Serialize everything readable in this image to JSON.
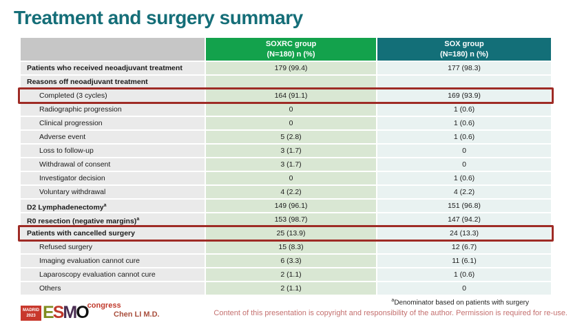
{
  "slide": {
    "title": "Treatment and surgery summary",
    "presenter": "Chen LI M.D.",
    "footnote": {
      "sup": "a",
      "text": "Denominator based on patients with surgery"
    },
    "copyright": "Content of this presentation is copyright and responsibility of the author.  Permission is required for re-use.",
    "logo": {
      "badge_line1": "MADRID",
      "badge_line2": "2023",
      "letters": [
        "E",
        "S",
        "M",
        "O"
      ],
      "congress": "congress"
    }
  },
  "colors": {
    "title_teal": "#156e78",
    "header_green": "#13a24c",
    "header_teal": "#136f78",
    "header_gray": "#c6c6c6",
    "label_cell": "#eaeaea",
    "soxrc_cell": "#d9e7d3",
    "sox_cell": "#e9f2f1",
    "highlight_red": "#9e2b25",
    "copyright_pink": "#c4706f",
    "presenter_red": "#a94f3d"
  },
  "table": {
    "header": {
      "col1": {
        "line1": "SOXRC group",
        "line2": "(N=180)  n (%)"
      },
      "col2": {
        "line1": "SOX group",
        "line2": "(N=180)  n (%)"
      }
    },
    "rows": [
      {
        "label": "Patients who received neoadjuvant treatment",
        "sup": "",
        "soxrc": "179 (99.4)",
        "sox": "177 (98.3)",
        "bold": true,
        "indent": false,
        "highlight": false
      },
      {
        "label": "Reasons off neoadjuvant treatment",
        "sup": "",
        "soxrc": "",
        "sox": "",
        "bold": true,
        "indent": false,
        "highlight": false
      },
      {
        "label": "Completed (3 cycles)",
        "sup": "",
        "soxrc": "164 (91.1)",
        "sox": "169 (93.9)",
        "bold": false,
        "indent": true,
        "highlight": true
      },
      {
        "label": "Radiographic progression",
        "sup": "",
        "soxrc": "0",
        "sox": "1 (0.6)",
        "bold": false,
        "indent": true,
        "highlight": false
      },
      {
        "label": "Clinical progression",
        "sup": "",
        "soxrc": "0",
        "sox": "1 (0.6)",
        "bold": false,
        "indent": true,
        "highlight": false
      },
      {
        "label": "Adverse event",
        "sup": "",
        "soxrc": "5 (2.8)",
        "sox": "1 (0.6)",
        "bold": false,
        "indent": true,
        "highlight": false
      },
      {
        "label": "Loss to follow-up",
        "sup": "",
        "soxrc": "3 (1.7)",
        "sox": "0",
        "bold": false,
        "indent": true,
        "highlight": false
      },
      {
        "label": "Withdrawal of consent",
        "sup": "",
        "soxrc": "3 (1.7)",
        "sox": "0",
        "bold": false,
        "indent": true,
        "highlight": false
      },
      {
        "label": "Investigator decision",
        "sup": "",
        "soxrc": "0",
        "sox": "1 (0.6)",
        "bold": false,
        "indent": true,
        "highlight": false
      },
      {
        "label": "Voluntary withdrawal",
        "sup": "",
        "soxrc": "4 (2.2)",
        "sox": "4 (2.2)",
        "bold": false,
        "indent": true,
        "highlight": false
      },
      {
        "label": "D2 Lymphadenectomy",
        "sup": "a",
        "soxrc": "149 (96.1)",
        "sox": "151 (96.8)",
        "bold": true,
        "indent": false,
        "highlight": false
      },
      {
        "label": "R0 resection (negative margins)",
        "sup": "a",
        "soxrc": "153 (98.7)",
        "sox": "147 (94.2)",
        "bold": true,
        "indent": false,
        "highlight": false
      },
      {
        "label": "Patients with cancelled surgery",
        "sup": "",
        "soxrc": "25 (13.9)",
        "sox": "24 (13.3)",
        "bold": true,
        "indent": false,
        "highlight": true
      },
      {
        "label": "Refused surgery",
        "sup": "",
        "soxrc": "15 (8.3)",
        "sox": "12 (6.7)",
        "bold": false,
        "indent": true,
        "highlight": false
      },
      {
        "label": "Imaging evaluation cannot cure",
        "sup": "",
        "soxrc": "6 (3.3)",
        "sox": "11 (6.1)",
        "bold": false,
        "indent": true,
        "highlight": false
      },
      {
        "label": "Laparoscopy evaluation cannot cure",
        "sup": "",
        "soxrc": "2 (1.1)",
        "sox": "1 (0.6)",
        "bold": false,
        "indent": true,
        "highlight": false
      },
      {
        "label": "Others",
        "sup": "",
        "soxrc": "2 (1.1)",
        "sox": "0",
        "bold": false,
        "indent": true,
        "highlight": false
      }
    ]
  }
}
